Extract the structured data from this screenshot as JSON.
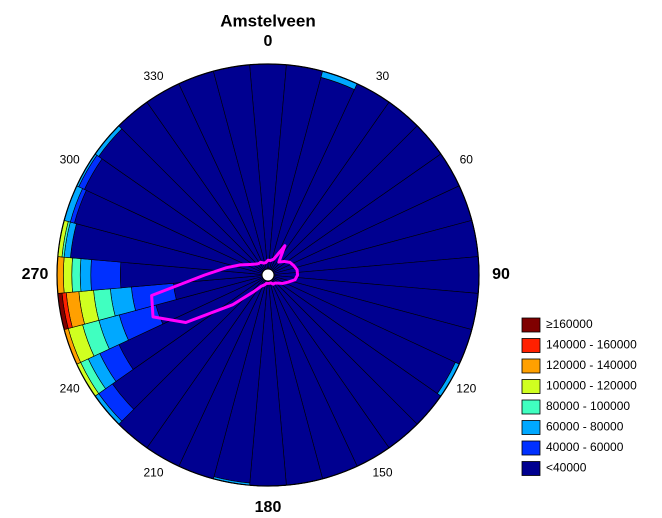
{
  "chart_data": {
    "type": "polar-stacked",
    "title": "Amstelveen",
    "directions": [
      0,
      10,
      20,
      30,
      40,
      50,
      60,
      70,
      80,
      90,
      100,
      110,
      120,
      130,
      140,
      150,
      160,
      170,
      180,
      190,
      200,
      210,
      220,
      230,
      240,
      250,
      260,
      270,
      280,
      290,
      300,
      310,
      320,
      330,
      340,
      350
    ],
    "rlim": [
      0,
      100
    ],
    "thetaticks": [
      0,
      30,
      60,
      90,
      120,
      150,
      180,
      210,
      240,
      270,
      300,
      330
    ],
    "legend": "right",
    "series": [
      {
        "name": "<40000",
        "color": "#000090",
        "values": [
          100,
          100,
          97,
          100,
          100,
          100,
          100,
          100,
          100,
          100,
          100,
          100,
          98,
          100,
          100,
          100,
          100,
          100,
          100,
          99,
          100,
          100,
          100,
          90,
          78,
          55,
          45,
          70,
          94,
          95,
          96,
          98,
          100,
          100,
          100,
          100
        ]
      },
      {
        "name": "40000 - 60000",
        "color": "#0030ff",
        "values": [
          0,
          0,
          0,
          0,
          0,
          0,
          0,
          0,
          0,
          0,
          0,
          0,
          0,
          0,
          0,
          0,
          0,
          0,
          0,
          0,
          0,
          0,
          0,
          8,
          10,
          18,
          20,
          14,
          0,
          2,
          3,
          0,
          0,
          0,
          0,
          0
        ]
      },
      {
        "name": "60000 - 80000",
        "color": "#00a8ff",
        "values": [
          0,
          0,
          3,
          0,
          0,
          0,
          0,
          0,
          0,
          0,
          0,
          0,
          2,
          0,
          0,
          0,
          0,
          0,
          0,
          1,
          0,
          0,
          0,
          2,
          6,
          10,
          10,
          5,
          3,
          3,
          1,
          2,
          0,
          0,
          0,
          0
        ]
      },
      {
        "name": "80000 - 100000",
        "color": "#40ffc0",
        "values": [
          0,
          0,
          0,
          0,
          0,
          0,
          0,
          0,
          0,
          0,
          0,
          0,
          0,
          0,
          0,
          0,
          0,
          0,
          0,
          0,
          0,
          0,
          0,
          0,
          4,
          8,
          8,
          4,
          1,
          0,
          0,
          0,
          0,
          0,
          0,
          0
        ]
      },
      {
        "name": "100000 - 120000",
        "color": "#d0ff20",
        "values": [
          0,
          0,
          0,
          0,
          0,
          0,
          0,
          0,
          0,
          0,
          0,
          0,
          0,
          0,
          0,
          0,
          0,
          0,
          0,
          0,
          0,
          0,
          0,
          0,
          2,
          7,
          7,
          4,
          2,
          0,
          0,
          0,
          0,
          0,
          0,
          0
        ]
      },
      {
        "name": "120000 - 140000",
        "color": "#ffa000",
        "values": [
          0,
          0,
          0,
          0,
          0,
          0,
          0,
          0,
          0,
          0,
          0,
          0,
          0,
          0,
          0,
          0,
          0,
          0,
          0,
          0,
          0,
          0,
          0,
          0,
          0,
          2,
          6,
          3,
          0,
          0,
          0,
          0,
          0,
          0,
          0,
          0
        ]
      },
      {
        "name": "140000 - 160000",
        "color": "#ff2000",
        "values": [
          0,
          0,
          0,
          0,
          0,
          0,
          0,
          0,
          0,
          0,
          0,
          0,
          0,
          0,
          0,
          0,
          0,
          0,
          0,
          0,
          0,
          0,
          0,
          0,
          0,
          0,
          2,
          0,
          0,
          0,
          0,
          0,
          0,
          0,
          0,
          0
        ]
      },
      {
        "name": "≥160000",
        "color": "#800000",
        "values": [
          0,
          0,
          0,
          0,
          0,
          0,
          0,
          0,
          0,
          0,
          0,
          0,
          0,
          0,
          0,
          0,
          0,
          0,
          0,
          0,
          0,
          0,
          0,
          0,
          0,
          0,
          2,
          0,
          0,
          0,
          0,
          0,
          0,
          0,
          0,
          0
        ]
      }
    ],
    "outline": {
      "color": "#ff00ff",
      "values": [
        7,
        7,
        8,
        16,
        8,
        10,
        12,
        13,
        14,
        14,
        13,
        10,
        8,
        6,
        5,
        5,
        4,
        4,
        4,
        4,
        5,
        6,
        10,
        22,
        45,
        58,
        56,
        30,
        20,
        14,
        10,
        8,
        7,
        7,
        6,
        6
      ]
    }
  }
}
